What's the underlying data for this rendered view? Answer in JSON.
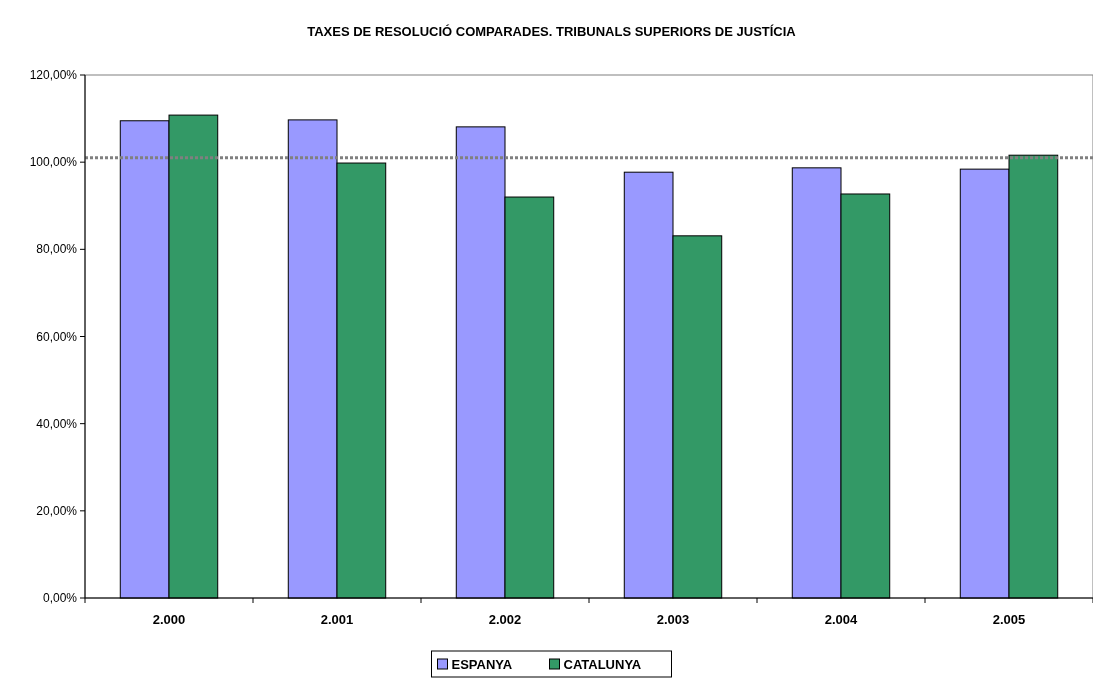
{
  "chart_data": {
    "type": "bar",
    "title": "TAXES DE RESOLUCIÓ COMPARADES. TRIBUNALS SUPERIORS DE JUSTÍCIA",
    "categories": [
      "2.000",
      "2.001",
      "2.002",
      "2.003",
      "2.004",
      "2.005"
    ],
    "series": [
      {
        "name": "ESPANYA",
        "color": "#9999ff",
        "values": [
          109.5,
          109.7,
          108.1,
          97.7,
          98.7,
          98.4
        ]
      },
      {
        "name": "CATALUNYA",
        "color": "#339966",
        "values": [
          110.8,
          99.8,
          92.0,
          83.1,
          92.7,
          101.6
        ]
      }
    ],
    "ylim": [
      0,
      120
    ],
    "yticks": [
      {
        "value": 0,
        "label": "0,00%"
      },
      {
        "value": 20,
        "label": "20,00%"
      },
      {
        "value": 40,
        "label": "40,00%"
      },
      {
        "value": 60,
        "label": "60,00%"
      },
      {
        "value": 80,
        "label": "80,00%"
      },
      {
        "value": 100,
        "label": "100,00%"
      },
      {
        "value": 120,
        "label": "120,00%"
      }
    ],
    "ref_lines": [
      {
        "axis": "y",
        "value": 101,
        "color": "#808080",
        "line_style": "dotted"
      }
    ],
    "grid": false,
    "legend": "bottom"
  }
}
